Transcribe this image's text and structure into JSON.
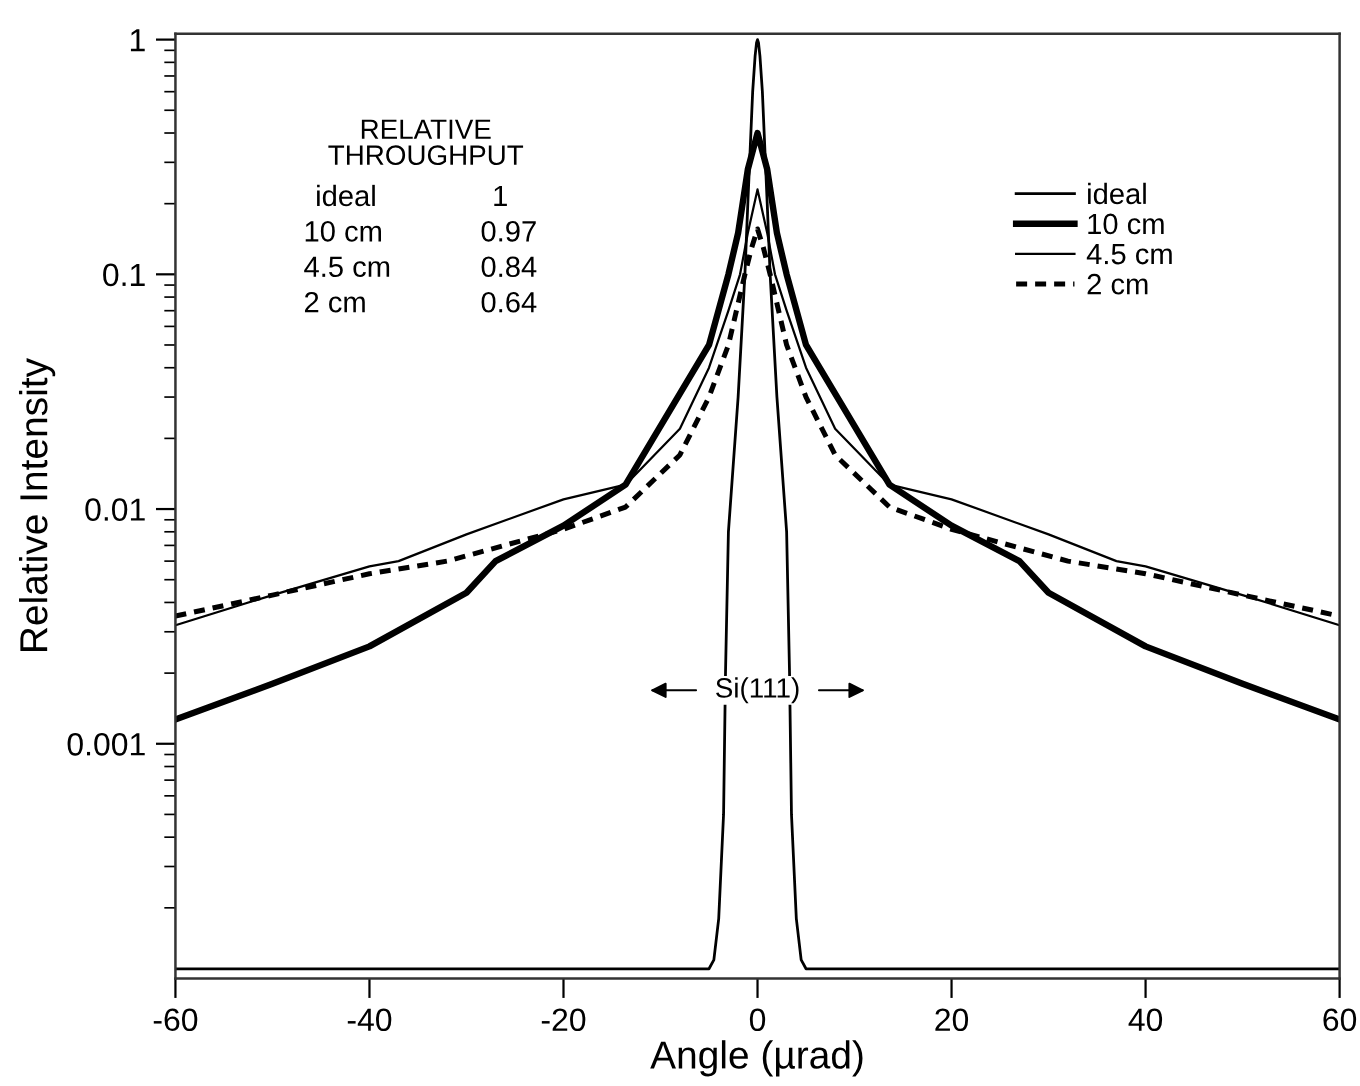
{
  "chart_data": {
    "type": "line",
    "xlabel": "Angle (µrad)",
    "ylabel": "Relative Intensity",
    "log": "y",
    "xlim": [
      -60,
      60
    ],
    "xticks": [
      -60,
      -40,
      -20,
      0,
      20,
      40,
      60
    ],
    "ylim": [
      0.0001,
      1.06
    ],
    "yticks": [
      1,
      0.1,
      0.01,
      0.001
    ],
    "legend": "top right",
    "grid": false,
    "series": [
      {
        "name": "ideal",
        "color": "#000000",
        "line_style": "solid",
        "x": [
          -60,
          -5,
          -4.5,
          -4,
          -3.5,
          -3.3,
          -3,
          -2,
          -1.3,
          -1,
          -0.5,
          -0.25,
          -0.1,
          0,
          0.1,
          0.25,
          0.5,
          1,
          1.3,
          2,
          3,
          3.3,
          3.5,
          4,
          4.5,
          5,
          60
        ],
        "values": [
          0.00011,
          0.00011,
          0.00012,
          0.00018,
          0.0005,
          0.002,
          0.008,
          0.03,
          0.1,
          0.2,
          0.6,
          0.85,
          0.97,
          1,
          0.97,
          0.85,
          0.6,
          0.2,
          0.1,
          0.03,
          0.008,
          0.002,
          0.0005,
          0.00018,
          0.00012,
          0.00011,
          0.00011
        ]
      },
      {
        "name": "10 cm",
        "color": "#000000",
        "line_style": "solid",
        "x": [
          -60,
          -50,
          -40,
          -30,
          -27,
          -20,
          -13.6,
          -8,
          -5,
          -3,
          -2,
          -1,
          0,
          1,
          2,
          3,
          5,
          8,
          13.6,
          20,
          27,
          30,
          40,
          50,
          60
        ],
        "values": [
          0.00127,
          0.0018,
          0.0026,
          0.0044,
          0.006,
          0.0085,
          0.0127,
          0.031,
          0.05,
          0.1,
          0.15,
          0.28,
          0.4,
          0.28,
          0.15,
          0.1,
          0.05,
          0.031,
          0.0127,
          0.0085,
          0.006,
          0.0044,
          0.0026,
          0.0018,
          0.00127
        ]
      },
      {
        "name": "4.5 cm",
        "color": "#000000",
        "line_style": "solid",
        "x": [
          -60,
          -50,
          -40,
          -37,
          -30,
          -20,
          -13.6,
          -8,
          -5,
          -3,
          -1.8,
          -1,
          0,
          1,
          1.8,
          3,
          5,
          8,
          13.6,
          20,
          30,
          37,
          40,
          50,
          60
        ],
        "values": [
          0.0032,
          0.0043,
          0.0057,
          0.006,
          0.0078,
          0.011,
          0.0127,
          0.022,
          0.04,
          0.07,
          0.1,
          0.15,
          0.23,
          0.15,
          0.1,
          0.07,
          0.04,
          0.022,
          0.0127,
          0.011,
          0.0078,
          0.006,
          0.0057,
          0.0043,
          0.0032
        ]
      },
      {
        "name": "2 cm",
        "color": "#000000",
        "line_style": "dashed",
        "x": [
          -60,
          -50,
          -40,
          -32,
          -20,
          -13.6,
          -8,
          -5,
          -3,
          -1.3,
          -0.6,
          0,
          0.6,
          1.3,
          3,
          5,
          8,
          13.6,
          20,
          32,
          40,
          50,
          60
        ],
        "values": [
          0.0035,
          0.0043,
          0.0053,
          0.006,
          0.0082,
          0.0102,
          0.017,
          0.03,
          0.05,
          0.1,
          0.13,
          0.156,
          0.13,
          0.1,
          0.05,
          0.03,
          0.017,
          0.0102,
          0.0082,
          0.006,
          0.0053,
          0.0043,
          0.0035
        ]
      }
    ],
    "annotations": [
      "Si(111)",
      "RELATIVE\nTHROUGHPUT",
      "ideal",
      "1",
      "10 cm",
      "0.97",
      "4.5 cm",
      "0.84",
      "2 cm",
      "0.64"
    ]
  }
}
